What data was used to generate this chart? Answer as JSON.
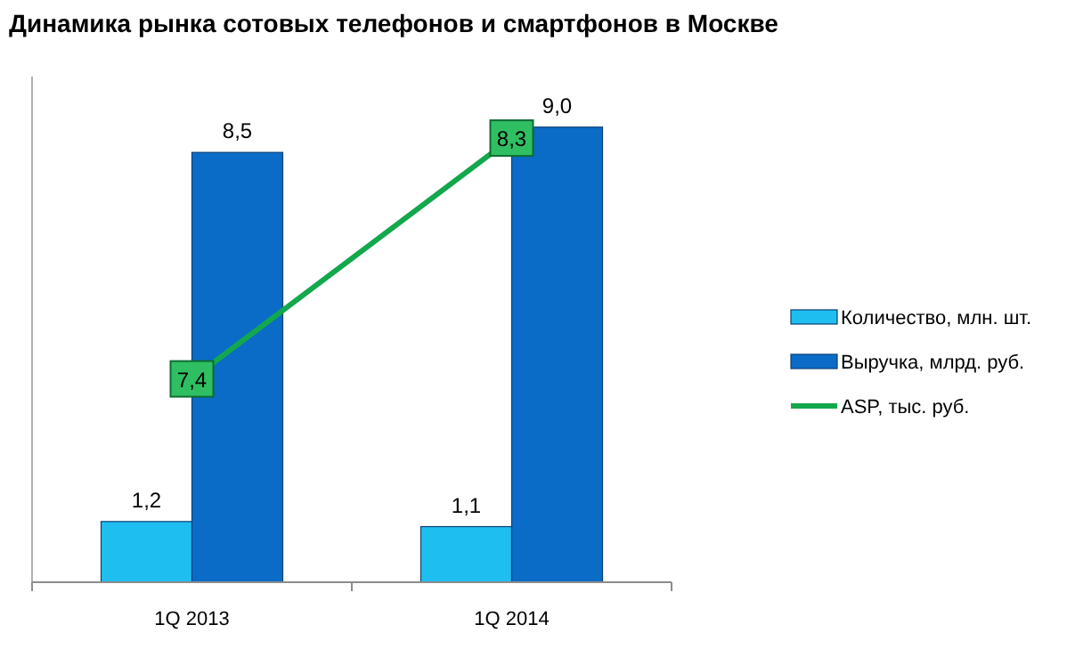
{
  "chart_data": {
    "type": "bar",
    "title": "Динамика рынка сотовых телефонов и смартфонов в Москве",
    "categories": [
      "1Q 2013",
      "1Q 2014"
    ],
    "series": [
      {
        "name": "Количество,  млн. шт.",
        "color": "#1fbef0",
        "values": [
          1.2,
          1.1
        ],
        "value_labels": [
          "1,2",
          "1,1"
        ]
      },
      {
        "name": "Выручка, млрд. руб.",
        "color": "#0a6cc6",
        "values": [
          8.5,
          9.0
        ],
        "value_labels": [
          "8,5",
          "9,0"
        ]
      },
      {
        "name": "ASP, тыс. руб.",
        "type": "line",
        "axis": "y2",
        "color": "#13a84e",
        "marker": "square",
        "values": [
          7.4,
          8.3
        ],
        "value_labels": [
          "7,4",
          "8,3"
        ]
      }
    ],
    "ylim": [
      0,
      10
    ],
    "y2lim": [
      6.64,
      8.53
    ],
    "tick_labels": "x",
    "legend": "right",
    "grid": false
  }
}
